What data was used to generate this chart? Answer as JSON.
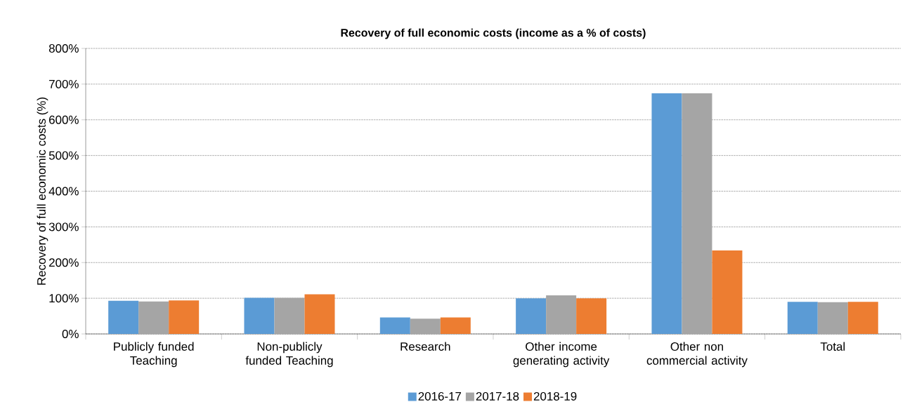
{
  "chart_data": {
    "type": "bar",
    "title": "Recovery of full economic costs (income as a % of costs)",
    "ylabel": "Recovery of full economic costs (%)",
    "categories": [
      "Publicly funded Teaching",
      "Non-publicly funded Teaching",
      "Research",
      "Other income generating activity",
      "Other non commercial activity",
      "Total"
    ],
    "series": [
      {
        "name": "2016-17",
        "color": "#5b9bd5",
        "values": [
          93,
          101,
          46,
          100,
          674,
          90
        ]
      },
      {
        "name": "2017-18",
        "color": "#a5a5a5",
        "values": [
          91,
          101,
          43,
          108,
          674,
          89
        ]
      },
      {
        "name": "2018-19",
        "color": "#ed7d31",
        "values": [
          94,
          111,
          46,
          100,
          234,
          90
        ]
      }
    ],
    "ylim": [
      0,
      800
    ],
    "yticks": [
      {
        "value": 0,
        "label": "0%"
      },
      {
        "value": 100,
        "label": "100%"
      },
      {
        "value": 200,
        "label": "200%"
      },
      {
        "value": 300,
        "label": "300%"
      },
      {
        "value": 400,
        "label": "400%"
      },
      {
        "value": 500,
        "label": "500%"
      },
      {
        "value": 600,
        "label": "600%"
      },
      {
        "value": 700,
        "label": "700%"
      },
      {
        "value": 800,
        "label": "800%"
      }
    ],
    "grid": "y",
    "legend": "bottom"
  }
}
